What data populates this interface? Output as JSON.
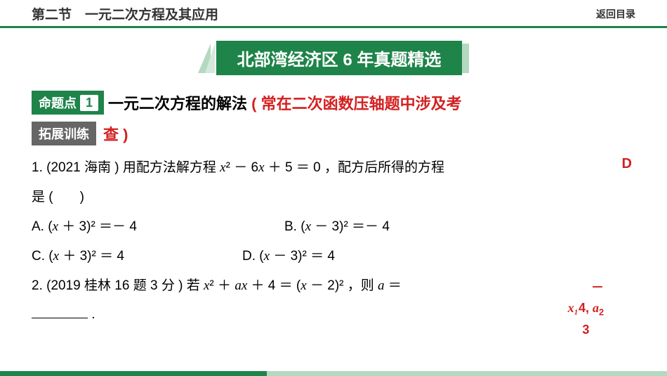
{
  "header": {
    "left": "第二节　一元二次方程及其应用",
    "right": "返回目录"
  },
  "title": "北部湾经济区 6 年真题精选",
  "topicTag": {
    "label": "命题点",
    "number": "1"
  },
  "sectionTitle": {
    "black": "一元二次方程的解法",
    "redLine1": " ( 常在二次函数压轴题中涉及考",
    "redLine2": "查 )"
  },
  "expandTag": "拓展训练",
  "q1": {
    "prefix": "1. (2021 海南 ) 用配方法解方程 ",
    "equation_parts": {
      "x2": "x",
      "sq": "²",
      "minus6x": " － 6",
      "x": "x",
      "plus5": " ＋ 5 ＝ 0",
      "suffix": " ，配方后所得的方程"
    },
    "line2": "是 (　　)",
    "options": {
      "A_pre": "A. (",
      "A_mid": " ＋ 3)² ＝－ 4",
      "B_pre": "B. (",
      "B_mid": " － 3)² ＝－ 4",
      "C_pre": "C. (",
      "C_mid": " ＋ 3)² ＝ 4",
      "D_pre": "D. (",
      "D_mid": " － 3)² ＝ 4"
    }
  },
  "q2": {
    "prefix": "2. (2019 桂林 16 题 3 分 ) 若 ",
    "mid1": "² ＋ ",
    "a": "a",
    "mid2": " ＋ 4 ＝ (",
    "mid3": " － 2)²",
    "suffix": " ，则 ",
    "eq": " ＝",
    "blank_period": "."
  },
  "answers": {
    "d": "D",
    "multi_top": "－",
    "multi_mid": "4",
    "multi_x1": "x₁",
    "multi_x2": "x₂",
    "multi_a": "a",
    "multi_bot": "3"
  },
  "colors": {
    "green": "#1e8449",
    "lightGreen": "#b3d9c1",
    "lighterGreen": "#d4e9db",
    "red": "#d32020",
    "gray": "#666"
  }
}
